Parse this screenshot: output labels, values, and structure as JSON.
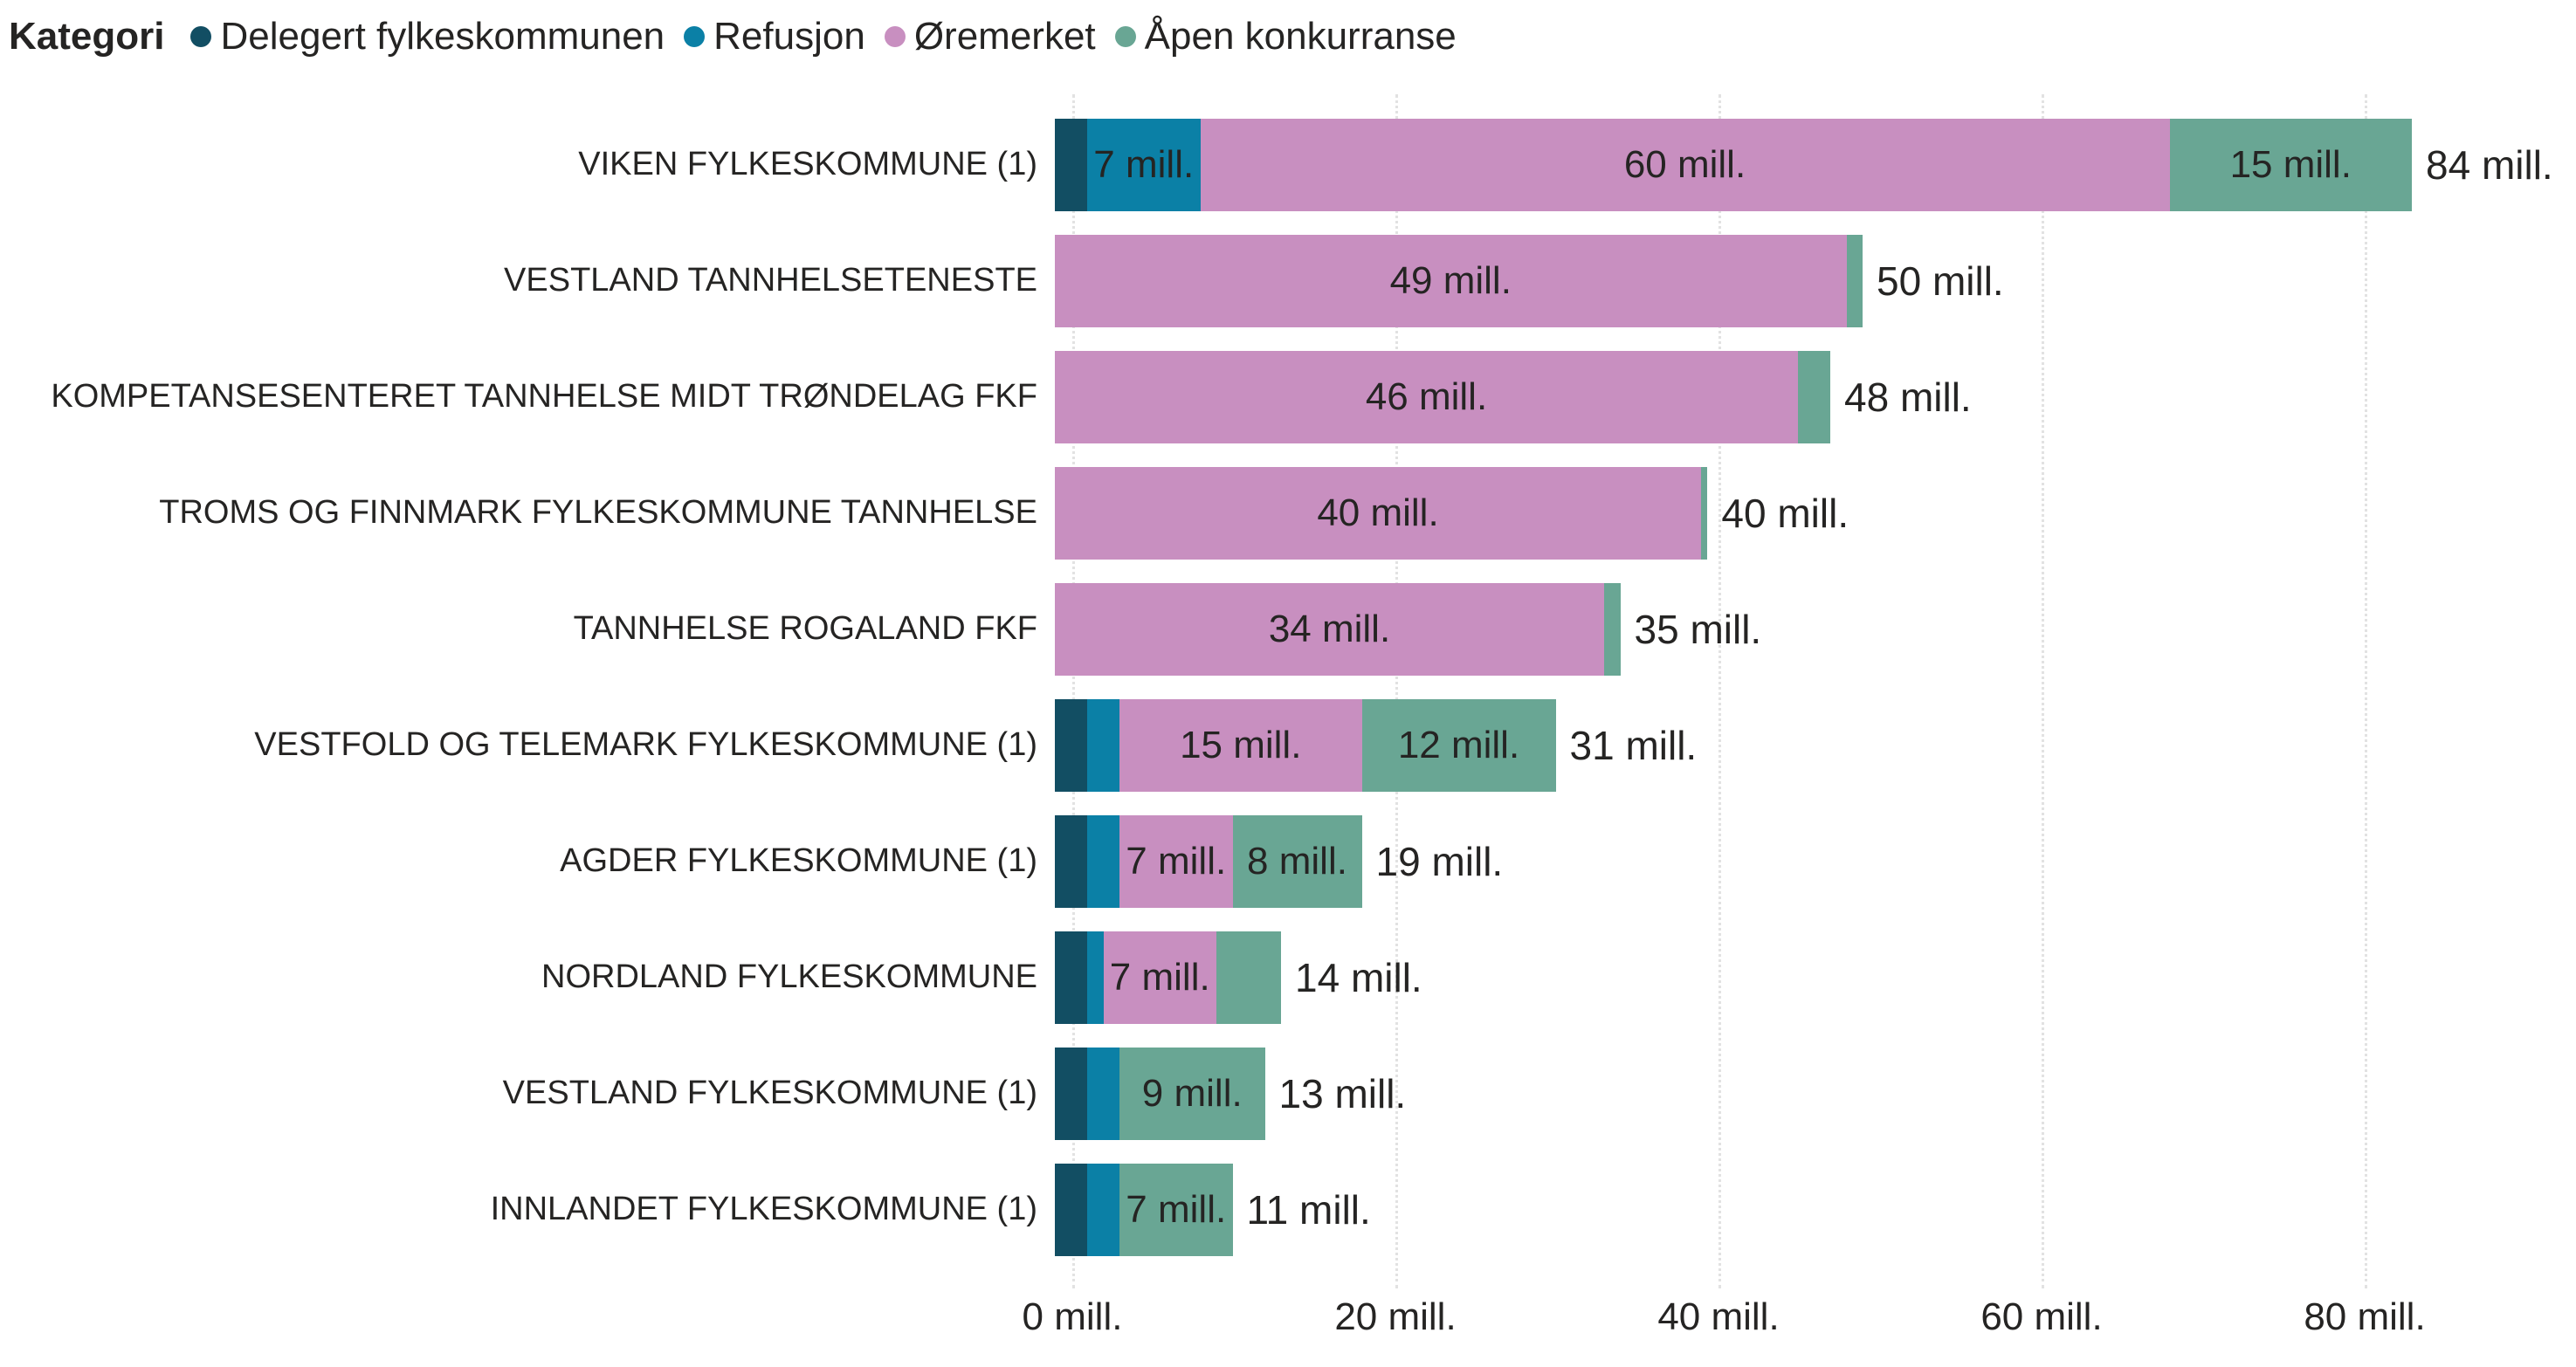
{
  "legend": {
    "title": "Kategori",
    "items": [
      {
        "label": "Delegert fylkeskommunen",
        "color": "#124E63"
      },
      {
        "label": "Refusjon",
        "color": "#0B80A6"
      },
      {
        "label": "Øremerket",
        "color": "#C88FC0"
      },
      {
        "label": "Åpen konkurranse",
        "color": "#69A694"
      }
    ]
  },
  "chart_data": {
    "type": "bar",
    "orientation": "horizontal",
    "stacked": true,
    "title": "",
    "xlabel": "",
    "ylabel": "",
    "unit": "mill.",
    "xlim": [
      0,
      93
    ],
    "grid": "vertical-dotted",
    "legend_position": "top-left",
    "x_ticks": [
      0,
      20,
      40,
      60,
      80
    ],
    "x_tick_labels": [
      "0 mill.",
      "20 mill.",
      "40 mill.",
      "60 mill.",
      "80 mill."
    ],
    "series_names": [
      "Delegert fylkeskommunen",
      "Refusjon",
      "Øremerket",
      "Åpen konkurranse"
    ],
    "series_colors": [
      "#124E63",
      "#0B80A6",
      "#C88FC0",
      "#69A694"
    ],
    "rows": [
      {
        "category": "VIKEN FYLKESKOMMUNE (1)",
        "values": [
          2,
          7,
          60,
          15
        ],
        "labels": [
          null,
          "7 mill.",
          "60 mill.",
          "15 mill."
        ],
        "total": 84,
        "total_label": "84 mill."
      },
      {
        "category": "VESTLAND TANNHELSETENESTE",
        "values": [
          0,
          0,
          49,
          1
        ],
        "labels": [
          null,
          null,
          "49 mill.",
          null
        ],
        "total": 50,
        "total_label": "50 mill."
      },
      {
        "category": "KOMPETANSESENTERET TANNHELSE MIDT TRØNDELAG FKF",
        "values": [
          0,
          0,
          46,
          2
        ],
        "labels": [
          null,
          null,
          "46 mill.",
          null
        ],
        "total": 48,
        "total_label": "48 mill."
      },
      {
        "category": "TROMS OG FINNMARK FYLKESKOMMUNE TANNHELSE",
        "values": [
          0,
          0,
          40,
          0.4
        ],
        "labels": [
          null,
          null,
          "40 mill.",
          null
        ],
        "total": 40,
        "total_label": "40 mill."
      },
      {
        "category": "TANNHELSE ROGALAND FKF",
        "values": [
          0,
          0,
          34,
          1
        ],
        "labels": [
          null,
          null,
          "34 mill.",
          null
        ],
        "total": 35,
        "total_label": "35 mill."
      },
      {
        "category": "VESTFOLD OG TELEMARK FYLKESKOMMUNE (1)",
        "values": [
          2,
          2,
          15,
          12
        ],
        "labels": [
          null,
          null,
          "15 mill.",
          "12 mill."
        ],
        "total": 31,
        "total_label": "31 mill."
      },
      {
        "category": "AGDER FYLKESKOMMUNE (1)",
        "values": [
          2,
          2,
          7,
          8
        ],
        "labels": [
          null,
          null,
          "7 mill.",
          "8 mill."
        ],
        "total": 19,
        "total_label": "19 mill."
      },
      {
        "category": "NORDLAND FYLKESKOMMUNE",
        "values": [
          2,
          1,
          7,
          4
        ],
        "labels": [
          null,
          null,
          "7 mill.",
          null
        ],
        "total": 14,
        "total_label": "14 mill."
      },
      {
        "category": "VESTLAND FYLKESKOMMUNE (1)",
        "values": [
          2,
          2,
          0,
          9
        ],
        "labels": [
          null,
          null,
          null,
          "9 mill."
        ],
        "total": 13,
        "total_label": "13 mill."
      },
      {
        "category": "INNLANDET FYLKESKOMMUNE (1)",
        "values": [
          2,
          2,
          0,
          7
        ],
        "labels": [
          null,
          null,
          null,
          "7 mill."
        ],
        "total": 11,
        "total_label": "11 mill."
      }
    ]
  }
}
